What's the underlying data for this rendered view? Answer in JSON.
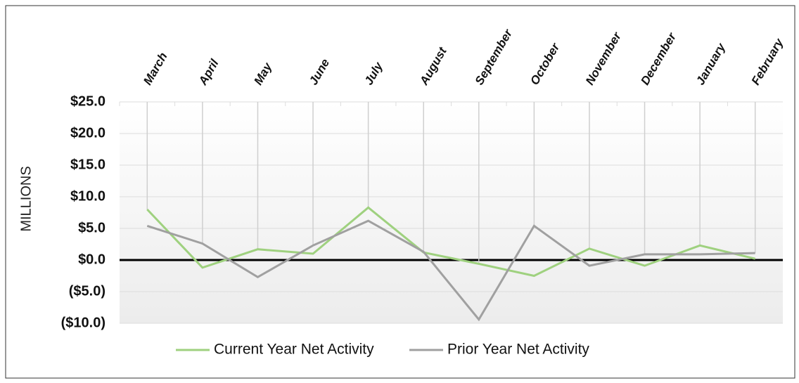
{
  "chart_data": {
    "type": "line",
    "y_axis_label": "MILLIONS",
    "categories": [
      "March",
      "April",
      "May",
      "June",
      "July",
      "August",
      "September",
      "October",
      "November",
      "December",
      "January",
      "February"
    ],
    "series": [
      {
        "name": "Current Year Net Activity",
        "color": "#9fd17f",
        "values": [
          8.0,
          -1.2,
          1.7,
          1.0,
          8.3,
          1.2,
          -0.6,
          -2.5,
          1.8,
          -0.9,
          2.3,
          0.2
        ]
      },
      {
        "name": "Prior Year Net Activity",
        "color": "#a0a0a0",
        "values": [
          5.4,
          2.6,
          -2.7,
          2.3,
          6.2,
          1.3,
          -9.4,
          5.4,
          -0.9,
          0.9,
          0.9,
          1.1
        ]
      }
    ],
    "ylim": [
      -10,
      25
    ],
    "yticks": [
      {
        "value": 25,
        "label": "$25.0"
      },
      {
        "value": 20,
        "label": "$20.0"
      },
      {
        "value": 15,
        "label": "$15.0"
      },
      {
        "value": 10,
        "label": "$10.0"
      },
      {
        "value": 5,
        "label": "$5.0"
      },
      {
        "value": 0,
        "label": "$0.0"
      },
      {
        "value": -5,
        "label": "($5.0)"
      },
      {
        "value": -10,
        "label": "($10.0)"
      }
    ],
    "grid": true,
    "legend": "bottom"
  }
}
